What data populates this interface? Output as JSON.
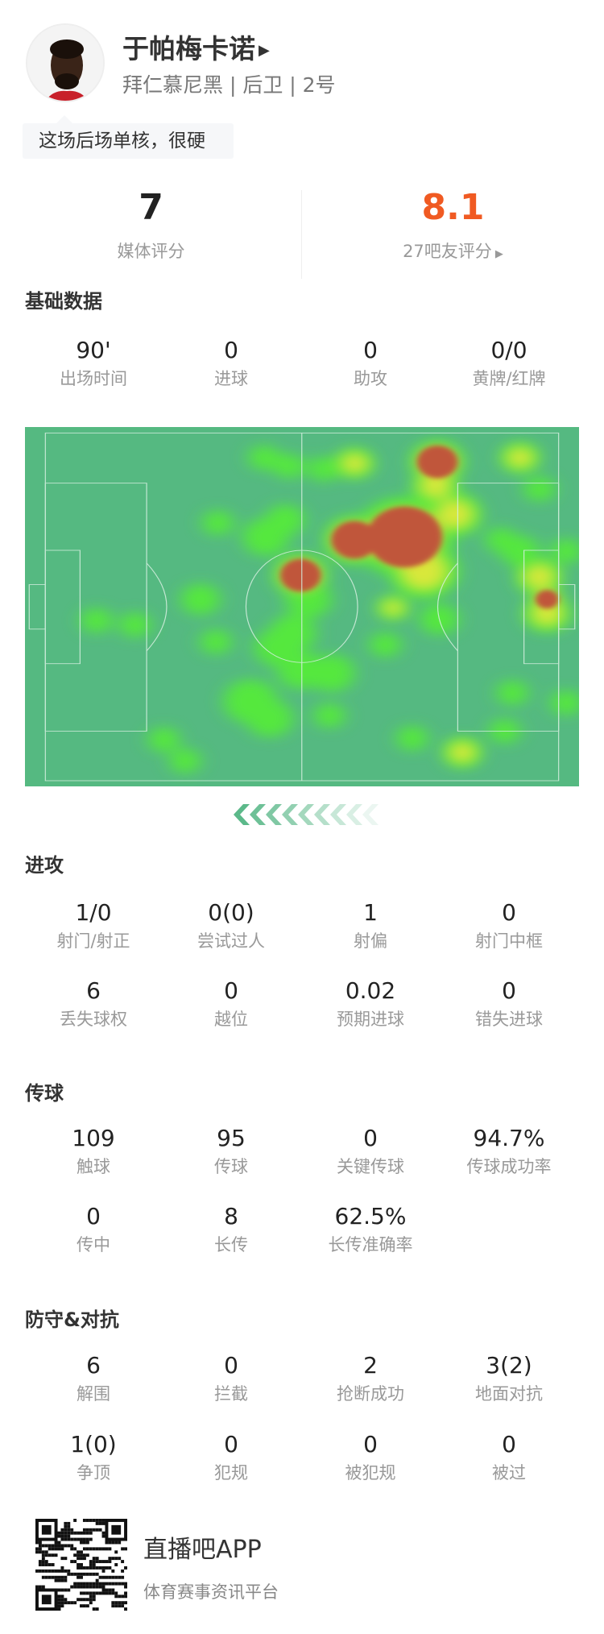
{
  "player": {
    "name": "于帕梅卡诺",
    "team": "拜仁慕尼黑",
    "position": "后卫",
    "number": "2号",
    "subtitle": "拜仁慕尼黑 | 后卫 | 2号",
    "comment": "这场后场单核，很硬"
  },
  "ratings": {
    "media": {
      "value": "7",
      "label": "媒体评分"
    },
    "fans": {
      "value": "8.1",
      "label": "27吧友评分",
      "color": "#f05a22"
    }
  },
  "sections": [
    {
      "title": "基础数据",
      "rows": [
        [
          {
            "v": "90'",
            "l": "出场时间"
          },
          {
            "v": "0",
            "l": "进球"
          },
          {
            "v": "0",
            "l": "助攻"
          },
          {
            "v": "0/0",
            "l": "黄牌/红牌"
          }
        ]
      ]
    },
    {
      "title": "进攻",
      "rows": [
        [
          {
            "v": "1/0",
            "l": "射门/射正"
          },
          {
            "v": "0(0)",
            "l": "尝试过人"
          },
          {
            "v": "1",
            "l": "射偏"
          },
          {
            "v": "0",
            "l": "射门中框"
          }
        ],
        [
          {
            "v": "6",
            "l": "丢失球权"
          },
          {
            "v": "0",
            "l": "越位"
          },
          {
            "v": "0.02",
            "l": "预期进球"
          },
          {
            "v": "0",
            "l": "错失进球"
          }
        ]
      ]
    },
    {
      "title": "传球",
      "rows": [
        [
          {
            "v": "109",
            "l": "触球"
          },
          {
            "v": "95",
            "l": "传球"
          },
          {
            "v": "0",
            "l": "关键传球"
          },
          {
            "v": "94.7%",
            "l": "传球成功率"
          }
        ],
        [
          {
            "v": "0",
            "l": "传中"
          },
          {
            "v": "8",
            "l": "长传"
          },
          {
            "v": "62.5%",
            "l": "长传准确率"
          }
        ]
      ]
    },
    {
      "title": "防守&对抗",
      "rows": [
        [
          {
            "v": "6",
            "l": "解围"
          },
          {
            "v": "0",
            "l": "拦截"
          },
          {
            "v": "2",
            "l": "抢断成功"
          },
          {
            "v": "3(2)",
            "l": "地面对抗"
          }
        ],
        [
          {
            "v": "1(0)",
            "l": "争顶"
          },
          {
            "v": "0",
            "l": "犯规"
          },
          {
            "v": "0",
            "l": "被犯规"
          },
          {
            "v": "0",
            "l": "被过"
          }
        ]
      ]
    }
  ],
  "heatmap": {
    "pitch_color": "#55b981",
    "attack_direction": "left"
  },
  "footer": {
    "app": "直播吧APP",
    "slogan": "体育赛事资讯平台"
  }
}
